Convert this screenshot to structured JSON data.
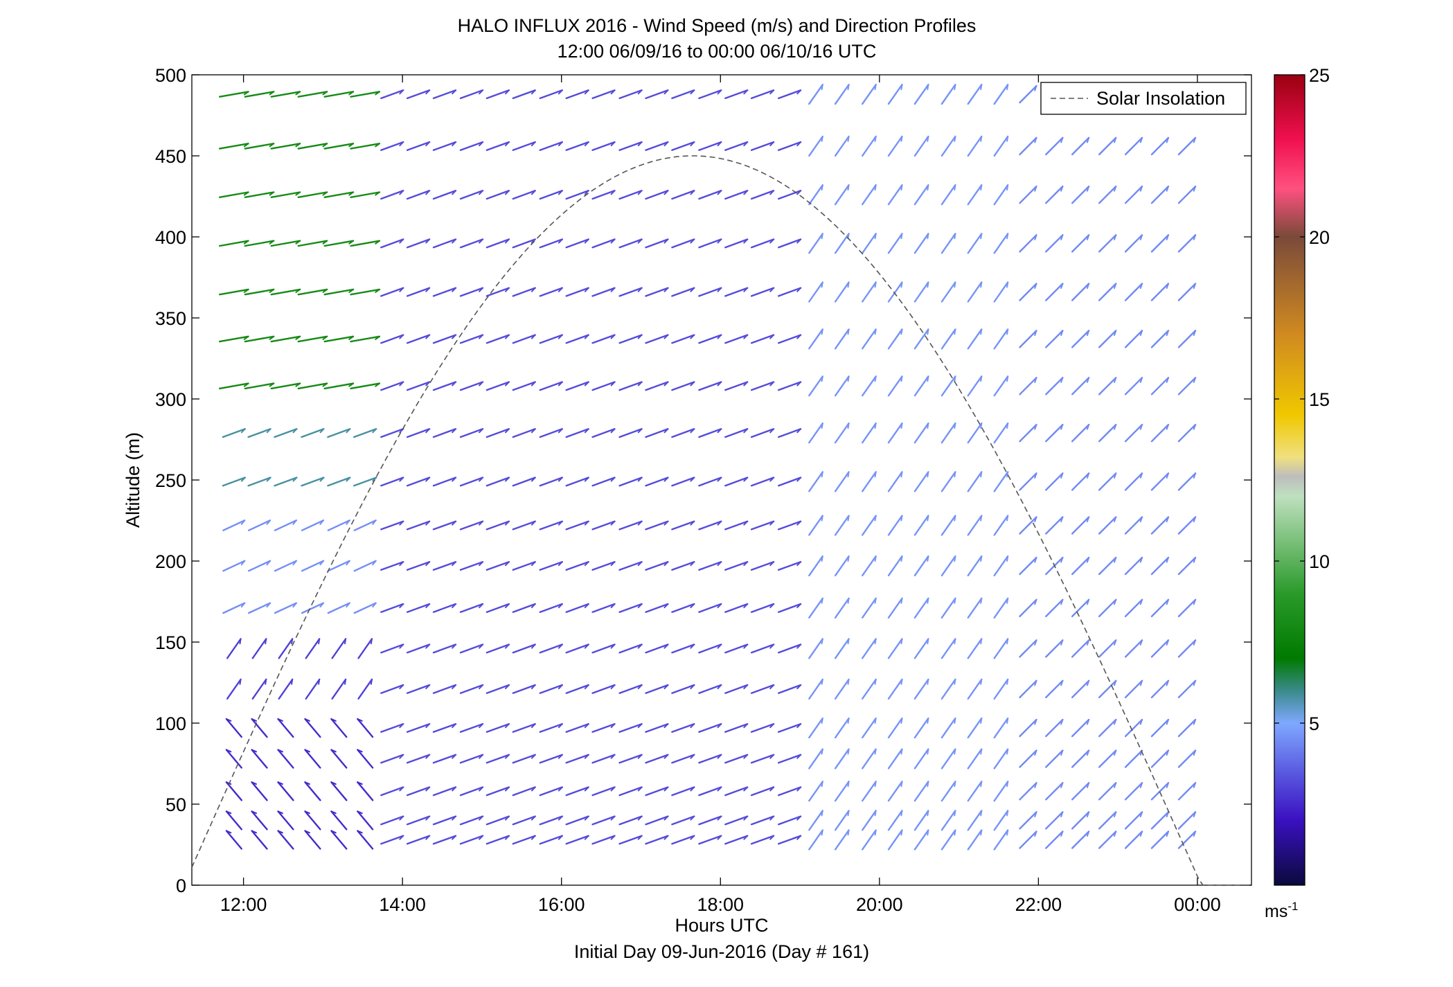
{
  "chart_data": {
    "type": "quiver",
    "title": "HALO INFLUX 2016 - Wind Speed (m/s) and Direction Profiles",
    "subtitle": "12:00 06/09/16 to 00:00 06/10/16  UTC",
    "xlabel": "Hours UTC",
    "xlabel2": "Initial Day 09-Jun-2016 (Day # 161)",
    "ylabel": "Altitude (m)",
    "xlim": [
      11.35,
      24.68
    ],
    "ylim": [
      0,
      500
    ],
    "xticks": [
      12,
      14,
      16,
      18,
      20,
      22,
      24
    ],
    "xtick_labels": [
      "12:00",
      "14:00",
      "16:00",
      "18:00",
      "20:00",
      "22:00",
      "00:00"
    ],
    "yticks": [
      0,
      50,
      100,
      150,
      200,
      250,
      300,
      350,
      400,
      450,
      500
    ],
    "ytick_labels": [
      "0",
      "50",
      "100",
      "150",
      "200",
      "250",
      "300",
      "350",
      "400",
      "450",
      "500"
    ],
    "legend": {
      "label": "Solar Insolation",
      "placement": "top-right"
    },
    "colorbar": {
      "min": 0,
      "max": 25,
      "ticks": [
        5,
        10,
        15,
        20,
        25
      ],
      "tick_labels": [
        "5",
        "10",
        "15",
        "20",
        "25"
      ],
      "unit_base": "ms",
      "unit_exp": "-1",
      "stops": [
        {
          "v": 0,
          "c": "#0a0a3c"
        },
        {
          "v": 2,
          "c": "#3a10c0"
        },
        {
          "v": 3.5,
          "c": "#5a5ae0"
        },
        {
          "v": 5,
          "c": "#7fa8ff"
        },
        {
          "v": 6,
          "c": "#3a8a8a"
        },
        {
          "v": 7,
          "c": "#007a00"
        },
        {
          "v": 9,
          "c": "#2a9a2a"
        },
        {
          "v": 12,
          "c": "#bfe0bf"
        },
        {
          "v": 12.6,
          "c": "#bdbdbd"
        },
        {
          "v": 13.2,
          "c": "#f0e080"
        },
        {
          "v": 14.5,
          "c": "#f0c800"
        },
        {
          "v": 17,
          "c": "#d08a20"
        },
        {
          "v": 20,
          "c": "#7a4a3a"
        },
        {
          "v": 21.5,
          "c": "#ff5080"
        },
        {
          "v": 23,
          "c": "#f01050"
        },
        {
          "v": 25,
          "c": "#9a0010"
        }
      ]
    },
    "solar_curve": {
      "peak_time": 17.65,
      "peak_alt": 450,
      "half_width_hours": 6.4,
      "style": "dashed",
      "color": "#555555"
    },
    "wind_field": {
      "times": [
        11.88,
        12.2,
        12.53,
        12.87,
        13.2,
        13.53,
        13.87,
        14.2,
        14.53,
        14.87,
        15.2,
        15.53,
        15.87,
        16.2,
        16.53,
        16.87,
        17.2,
        17.53,
        17.87,
        18.2,
        18.53,
        18.87,
        19.2,
        19.53,
        19.87,
        20.2,
        20.53,
        20.87,
        21.2,
        21.53,
        21.87,
        22.2,
        22.53,
        22.87,
        23.2,
        23.53,
        23.87
      ],
      "altitudes": [
        28,
        40,
        58,
        78,
        97,
        121,
        146,
        171,
        197,
        222,
        249,
        279,
        308,
        337,
        366,
        396,
        426,
        456,
        488
      ],
      "segments": [
        {
          "t0": 11.75,
          "t1": 13.75,
          "z_min": 280,
          "speed": 8.0,
          "dir_deg": 260,
          "joined": true
        },
        {
          "t0": 11.75,
          "t1": 13.75,
          "z_min": 240,
          "z_max": 280,
          "speed": 5.8,
          "dir_deg": 250,
          "joined": false
        },
        {
          "t0": 11.75,
          "t1": 13.75,
          "z_min": 160,
          "z_max": 240,
          "speed": 4.5,
          "dir_deg": 245,
          "joined": false
        },
        {
          "t0": 11.75,
          "t1": 13.75,
          "z_min": 110,
          "z_max": 160,
          "speed": 3.0,
          "dir_deg": 215,
          "joined": false
        },
        {
          "t0": 11.75,
          "t1": 13.75,
          "z_max": 110,
          "speed": 2.5,
          "dir_deg": 140,
          "joined": false
        },
        {
          "t0": 13.75,
          "t1": 19.0,
          "speed": 3.2,
          "dir_deg": 250,
          "joined": false
        },
        {
          "t0": 19.0,
          "t1": 21.6,
          "speed": 4.6,
          "dir_deg": 215,
          "joined": false
        },
        {
          "t0": 21.6,
          "t1": 24.0,
          "speed": 4.4,
          "dir_deg": 225,
          "joined": false
        }
      ]
    }
  }
}
